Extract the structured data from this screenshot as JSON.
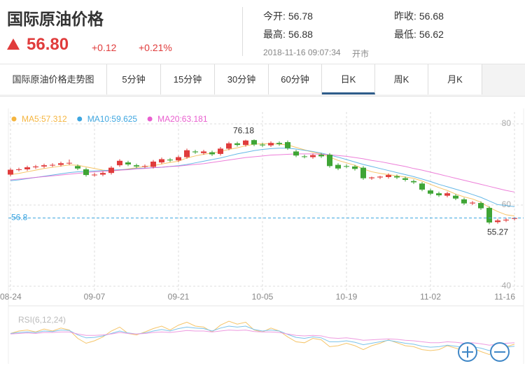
{
  "header": {
    "title": "国际原油价格",
    "price": "56.80",
    "change": "+0.12",
    "change_pct": "+0.21%",
    "stats": [
      {
        "label": "今开:",
        "value": "56.78"
      },
      {
        "label": "昨收:",
        "value": "56.68"
      },
      {
        "label": "最高:",
        "value": "56.88"
      },
      {
        "label": "最低:",
        "value": "56.62"
      }
    ],
    "time": "2018-11-16 09:07:34",
    "status": "开市"
  },
  "tabs": [
    "国际原油价格走势图",
    "5分钟",
    "15分钟",
    "30分钟",
    "60分钟",
    "日K",
    "周K",
    "月K"
  ],
  "active_tab": 5,
  "chart_data": [
    {
      "type": "candlestick",
      "categories": [
        "08-24",
        null,
        null,
        null,
        null,
        null,
        null,
        null,
        null,
        null,
        "09-07",
        null,
        null,
        null,
        null,
        null,
        null,
        null,
        null,
        null,
        "09-21",
        null,
        null,
        null,
        null,
        null,
        null,
        null,
        null,
        null,
        "10-05",
        null,
        null,
        null,
        null,
        null,
        null,
        null,
        null,
        null,
        "10-19",
        null,
        null,
        null,
        null,
        null,
        null,
        null,
        null,
        null,
        "11-02",
        null,
        null,
        null,
        null,
        null,
        null,
        null,
        null,
        null,
        "11-16"
      ],
      "open": [
        67.5,
        68.7,
        68.8,
        69.3,
        69.5,
        69.8,
        69.9,
        70.3,
        69.6,
        68.8,
        67.4,
        67.5,
        67.9,
        69.8,
        70.5,
        69.8,
        69.5,
        69.4,
        70.5,
        71.2,
        71.0,
        71.8,
        73.2,
        72.8,
        73.0,
        72.6,
        73.9,
        75.2,
        74.8,
        76.0,
        74.9,
        74.7,
        75.3,
        75.5,
        73.2,
        72.0,
        71.8,
        72.4,
        72.4,
        69.9,
        69.6,
        69.5,
        69.2,
        66.6,
        66.8,
        66.9,
        67.1,
        66.6,
        65.9,
        65.3,
        63.6,
        62.9,
        62.3,
        62.3,
        61.4,
        60.4,
        60.5,
        59.3,
        55.8,
        56.2,
        56.6
      ],
      "high": [
        69.1,
        69.2,
        69.7,
        69.9,
        70.2,
        70.3,
        70.7,
        71.2,
        70.0,
        69.2,
        67.9,
        68.3,
        69.6,
        71.3,
        70.9,
        70.2,
        70.0,
        71.1,
        71.7,
        71.6,
        72.2,
        73.9,
        73.6,
        73.6,
        73.4,
        74.3,
        75.6,
        75.6,
        76.1,
        76.18,
        75.3,
        75.7,
        75.7,
        75.9,
        73.6,
        72.4,
        72.7,
        72.8,
        72.8,
        70.3,
        70.0,
        69.9,
        69.6,
        67.0,
        67.2,
        67.8,
        67.5,
        67.0,
        66.3,
        65.7,
        64.0,
        63.3,
        63.3,
        62.7,
        61.8,
        61.0,
        60.9,
        59.7,
        56.6,
        56.8,
        57.0
      ],
      "low": [
        67.1,
        68.3,
        68.4,
        68.9,
        69.1,
        69.4,
        69.5,
        69.9,
        68.6,
        67.0,
        67.0,
        67.1,
        67.5,
        69.4,
        69.6,
        69.1,
        69.1,
        69.0,
        70.1,
        70.6,
        70.6,
        71.4,
        72.6,
        72.4,
        72.1,
        72.2,
        73.5,
        74.4,
        74.4,
        74.5,
        74.3,
        74.3,
        74.6,
        73.6,
        71.8,
        71.5,
        71.4,
        71.6,
        69.2,
        68.6,
        69.1,
        68.5,
        66.2,
        66.2,
        66.4,
        66.5,
        66.4,
        65.8,
        65.2,
        63.4,
        62.4,
        62.0,
        61.9,
        61.2,
        60.0,
        60.0,
        58.8,
        55.27,
        55.4,
        55.8,
        56.2
      ],
      "close": [
        68.7,
        68.8,
        69.3,
        69.5,
        69.8,
        69.9,
        70.3,
        70.4,
        69.0,
        67.4,
        67.5,
        67.9,
        69.2,
        70.9,
        70.0,
        69.5,
        69.6,
        70.7,
        71.3,
        71.0,
        71.8,
        73.5,
        73.0,
        73.2,
        72.5,
        73.9,
        75.2,
        74.8,
        75.9,
        74.9,
        74.7,
        75.3,
        75.0,
        74.0,
        72.2,
        71.9,
        72.3,
        72.0,
        69.6,
        69.0,
        69.5,
        68.9,
        66.6,
        66.8,
        67.0,
        67.4,
        66.8,
        66.2,
        65.6,
        63.8,
        62.8,
        62.4,
        62.9,
        61.6,
        60.4,
        60.6,
        59.2,
        55.7,
        56.2,
        56.4,
        56.8
      ],
      "up_color": "#e03c3c",
      "down_color": "#3fa535",
      "series": [
        {
          "name": "MA5:57.312",
          "color": "#f5b53f",
          "values": [
            67.5,
            67.8,
            68.2,
            68.6,
            69.0,
            69.3,
            69.6,
            69.9,
            69.8,
            69.4,
            69.0,
            68.6,
            68.4,
            68.6,
            68.9,
            69.2,
            69.5,
            69.7,
            70.1,
            70.5,
            70.8,
            71.6,
            72.1,
            72.5,
            72.8,
            73.2,
            73.7,
            74.1,
            74.6,
            75.0,
            75.1,
            75.1,
            75.0,
            74.8,
            74.2,
            73.6,
            73.0,
            72.6,
            71.8,
            71.0,
            70.4,
            69.8,
            68.9,
            68.2,
            67.8,
            67.5,
            67.2,
            66.9,
            66.6,
            65.9,
            65.1,
            64.3,
            63.6,
            62.7,
            62.0,
            61.5,
            60.7,
            59.4,
            58.4,
            57.6,
            57.3
          ]
        },
        {
          "name": "MA10:59.625",
          "color": "#3ea6e0",
          "values": [
            66.0,
            66.2,
            66.5,
            66.8,
            67.1,
            67.4,
            67.7,
            68.0,
            68.2,
            68.3,
            68.4,
            68.5,
            68.6,
            68.7,
            68.8,
            69.0,
            69.1,
            69.2,
            69.3,
            69.5,
            69.7,
            70.0,
            70.4,
            70.8,
            71.2,
            71.6,
            72.1,
            72.6,
            73.0,
            73.4,
            73.7,
            73.9,
            74.0,
            74.0,
            73.8,
            73.5,
            73.2,
            72.8,
            72.3,
            71.8,
            71.2,
            70.6,
            70.0,
            69.5,
            69.0,
            68.5,
            68.0,
            67.5,
            67.0,
            66.4,
            65.8,
            65.1,
            64.5,
            63.9,
            63.3,
            62.6,
            61.9,
            61.0,
            60.1,
            59.9,
            59.6
          ]
        },
        {
          "name": "MA20:63.181",
          "color": "#e95fcf",
          "values": [
            66.2,
            66.4,
            66.6,
            66.8,
            67.0,
            67.2,
            67.4,
            67.6,
            67.8,
            68.0,
            68.2,
            68.3,
            68.4,
            68.6,
            68.7,
            68.9,
            69.0,
            69.2,
            69.3,
            69.5,
            69.6,
            69.8,
            70.0,
            70.2,
            70.5,
            70.8,
            71.1,
            71.4,
            71.7,
            71.9,
            72.1,
            72.3,
            72.4,
            72.5,
            72.6,
            72.6,
            72.6,
            72.5,
            72.4,
            72.2,
            72.0,
            71.7,
            71.4,
            71.0,
            70.7,
            70.3,
            69.9,
            69.5,
            69.0,
            68.6,
            68.1,
            67.6,
            67.1,
            66.6,
            66.1,
            65.6,
            65.1,
            64.6,
            64.1,
            63.6,
            63.2
          ]
        }
      ],
      "price_line": 56.8,
      "price_line_color": "#3ea6e0",
      "ylim": [
        40,
        80
      ],
      "yticks": [
        40,
        60,
        80
      ],
      "grid": true
    },
    {
      "type": "line",
      "title": "RSI(6,12,24)",
      "ylim": [
        0,
        100
      ],
      "series": [
        {
          "color": "#f5c56a",
          "values": [
            55,
            60,
            62,
            58,
            64,
            60,
            66,
            62,
            45,
            35,
            40,
            48,
            60,
            68,
            55,
            52,
            58,
            65,
            70,
            62,
            72,
            78,
            70,
            68,
            58,
            72,
            80,
            74,
            78,
            62,
            58,
            66,
            60,
            48,
            38,
            36,
            45,
            42,
            28,
            30,
            35,
            30,
            22,
            30,
            35,
            42,
            36,
            30,
            28,
            22,
            20,
            22,
            30,
            25,
            20,
            25,
            18,
            12,
            22,
            28,
            33
          ]
        },
        {
          "color": "#7cc3ea",
          "values": [
            55,
            57,
            58,
            57,
            60,
            59,
            62,
            61,
            52,
            46,
            47,
            50,
            55,
            60,
            56,
            54,
            56,
            60,
            63,
            60,
            65,
            68,
            66,
            65,
            60,
            66,
            70,
            68,
            70,
            63,
            60,
            62,
            60,
            53,
            47,
            45,
            48,
            46,
            38,
            38,
            40,
            37,
            32,
            35,
            38,
            41,
            38,
            35,
            33,
            29,
            27,
            28,
            31,
            29,
            26,
            28,
            25,
            20,
            24,
            27,
            29
          ]
        },
        {
          "color": "#ee9be0",
          "values": [
            54,
            55,
            56,
            55,
            57,
            57,
            58,
            58,
            54,
            51,
            51,
            52,
            54,
            57,
            55,
            54,
            55,
            57,
            58,
            57,
            59,
            61,
            60,
            60,
            58,
            60,
            62,
            61,
            62,
            59,
            58,
            58,
            57,
            54,
            51,
            50,
            51,
            50,
            46,
            45,
            46,
            44,
            41,
            42,
            43,
            44,
            43,
            41,
            40,
            38,
            36,
            36,
            38,
            37,
            35,
            36,
            34,
            31,
            33,
            35,
            36
          ]
        }
      ]
    }
  ]
}
